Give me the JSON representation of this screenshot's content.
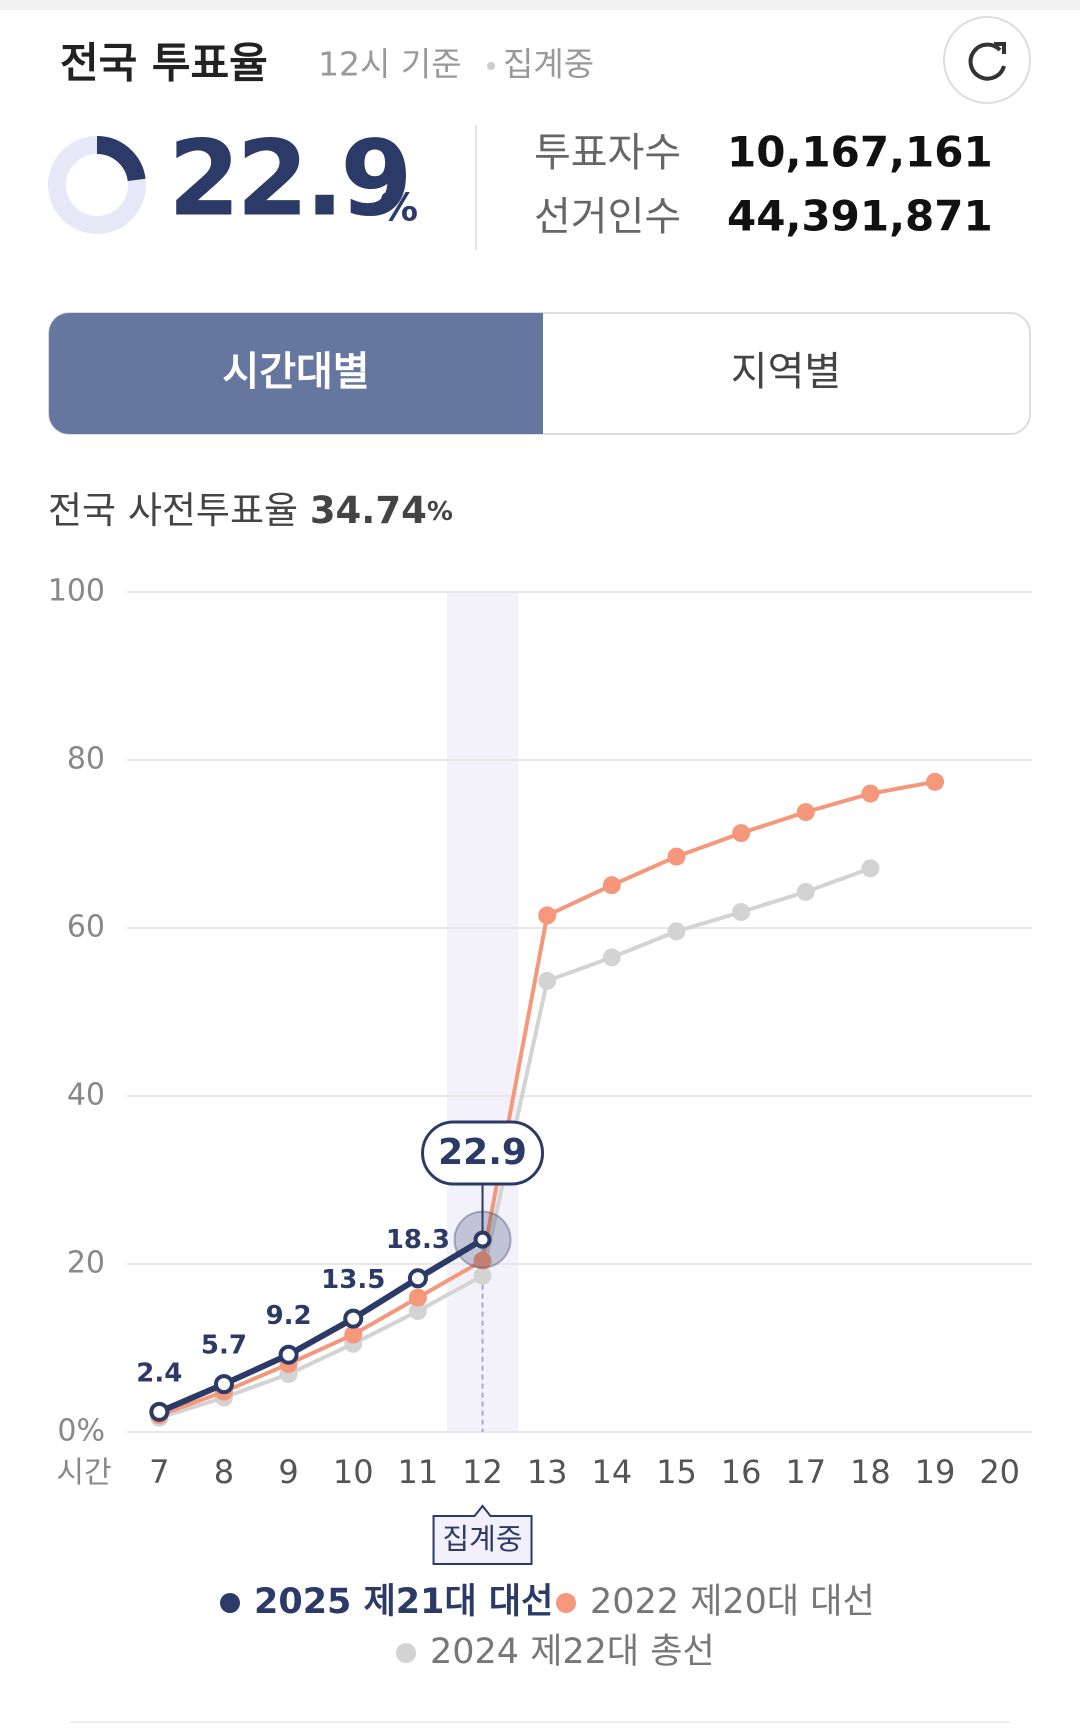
{
  "header": {
    "title": "전국 투표율",
    "time": "12시 기준",
    "status": "집계중"
  },
  "summary": {
    "rate": "22.9",
    "rate_unit": "%",
    "rate_value": 22.9,
    "stats": [
      {
        "label": "투표자수",
        "value": "10,167,161"
      },
      {
        "label": "선거인수",
        "value": "44,391,871"
      }
    ]
  },
  "tabs": [
    {
      "label": "시간대별",
      "active": true
    },
    {
      "label": "지역별",
      "active": false
    }
  ],
  "early_vote": {
    "label": "전국 사전투표율",
    "value": "34.74",
    "unit": "%"
  },
  "chart_data": {
    "type": "line",
    "x_label": "시간",
    "x": [
      7,
      8,
      9,
      10,
      11,
      12,
      13,
      14,
      15,
      16,
      17,
      18,
      19
    ],
    "xlim": [
      6.5,
      20.5
    ],
    "xticks": [
      7,
      8,
      9,
      10,
      11,
      12,
      13,
      14,
      15,
      16,
      17,
      18,
      19,
      20
    ],
    "ylim": [
      0,
      100
    ],
    "yticks": [
      {
        "value": 0,
        "label": "0%"
      },
      20,
      40,
      60,
      80,
      100
    ],
    "grid": true,
    "highlight": {
      "x": 12,
      "label": "집계중"
    },
    "series": [
      {
        "name": "2025 제21대 대선",
        "color": "#2b3a67",
        "labels": true,
        "values": [
          2.4,
          5.7,
          9.2,
          13.5,
          18.3,
          22.9,
          null,
          null,
          null,
          null,
          null,
          null,
          null
        ]
      },
      {
        "name": "2022 제20대 대선",
        "color": "#f4977a",
        "values": [
          2.0,
          4.8,
          8.1,
          11.6,
          16.0,
          20.4,
          61.5,
          65.1,
          68.5,
          71.3,
          73.8,
          76.0,
          77.4
        ]
      },
      {
        "name": "2024 제22대 총선",
        "color": "#d3d3d3",
        "values": [
          1.7,
          4.1,
          6.9,
          10.5,
          14.4,
          18.6,
          53.7,
          56.5,
          59.6,
          61.9,
          64.3,
          67.1,
          null
        ]
      }
    ]
  }
}
